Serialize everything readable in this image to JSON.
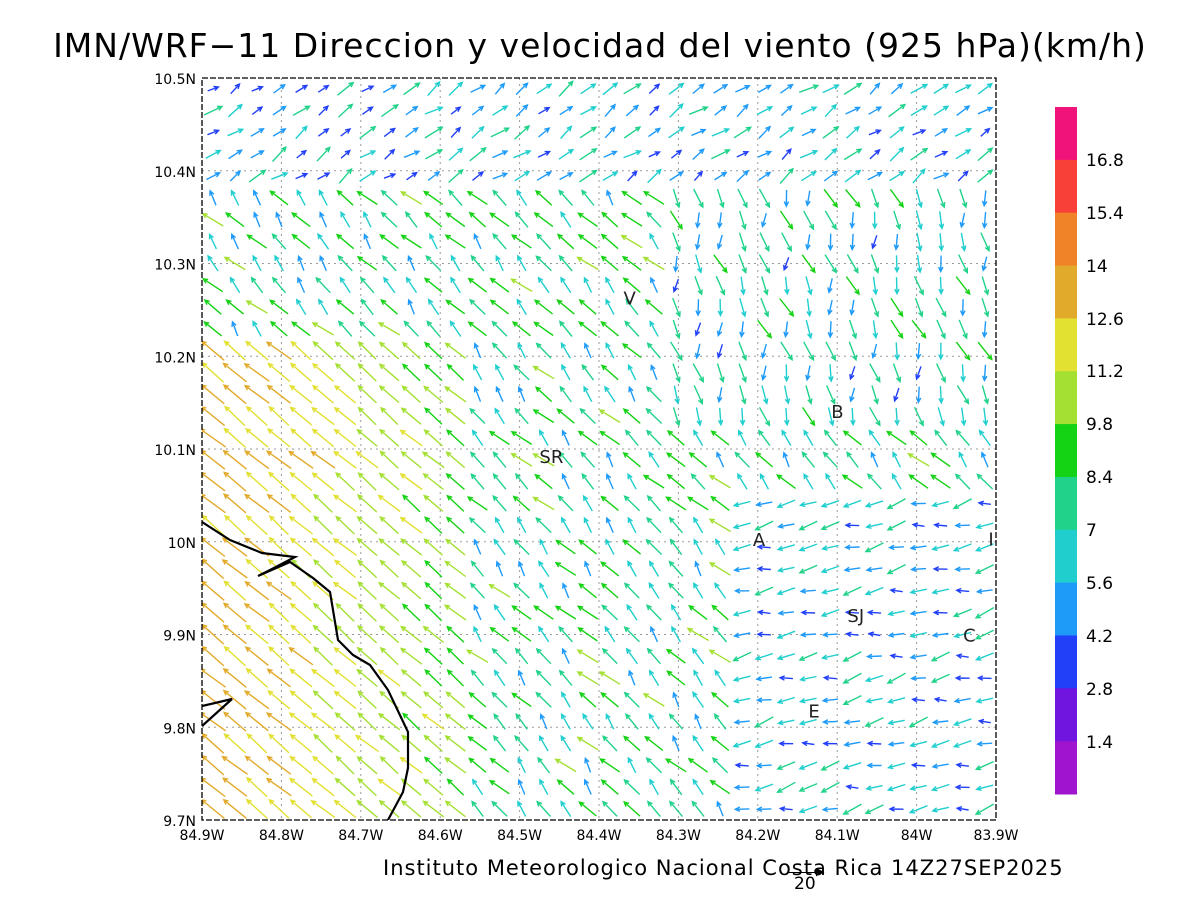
{
  "title": "IMN/WRF−11 Direccion y velocidad del viento (925 hPa)(km/h)",
  "footer": "Instituto Meteorologico Nacional Costa Rica 14Z27SEP2025",
  "reference_vector": {
    "value": "20"
  },
  "axes": {
    "lon_ticks": [
      "84.9W",
      "84.8W",
      "84.7W",
      "84.6W",
      "84.5W",
      "84.4W",
      "84.3W",
      "84.2W",
      "84.1W",
      "84W",
      "83.9W"
    ],
    "lat_ticks": [
      "10.5N",
      "10.4N",
      "10.3N",
      "10.2N",
      "10.1N",
      "10N",
      "9.9N",
      "9.8N",
      "9.7N"
    ],
    "lon_range": [
      -84.9,
      -83.9
    ],
    "lat_range": [
      9.7,
      10.5
    ]
  },
  "colorbar": {
    "labels": [
      "16.8",
      "15.4",
      "14",
      "12.6",
      "11.2",
      "9.8",
      "8.4",
      "7",
      "5.6",
      "4.2",
      "2.8",
      "1.4"
    ],
    "colors_top_to_bottom": [
      "#f0147a",
      "#f84038",
      "#f08228",
      "#e2aa2a",
      "#e2e030",
      "#a4e032",
      "#14d214",
      "#20d28a",
      "#20cece",
      "#1e9af8",
      "#2240f8",
      "#7014e0",
      "#a014d0"
    ]
  },
  "cities": [
    {
      "label": "V",
      "lon": -84.37,
      "lat": 10.28
    },
    {
      "label": "SR",
      "lon": -84.46,
      "lat": 10.09
    },
    {
      "label": "B",
      "lon": -84.11,
      "lat": 10.135
    },
    {
      "label": "A",
      "lon": -84.2,
      "lat": 10.0
    },
    {
      "label": "SJ",
      "lon": -84.083,
      "lat": 9.917
    },
    {
      "label": "C",
      "lon": -83.945,
      "lat": 9.9
    },
    {
      "label": "E",
      "lon": -84.118,
      "lat": 9.815
    },
    {
      "label": "I",
      "lon": -83.904,
      "lat": 10.003
    }
  ]
}
